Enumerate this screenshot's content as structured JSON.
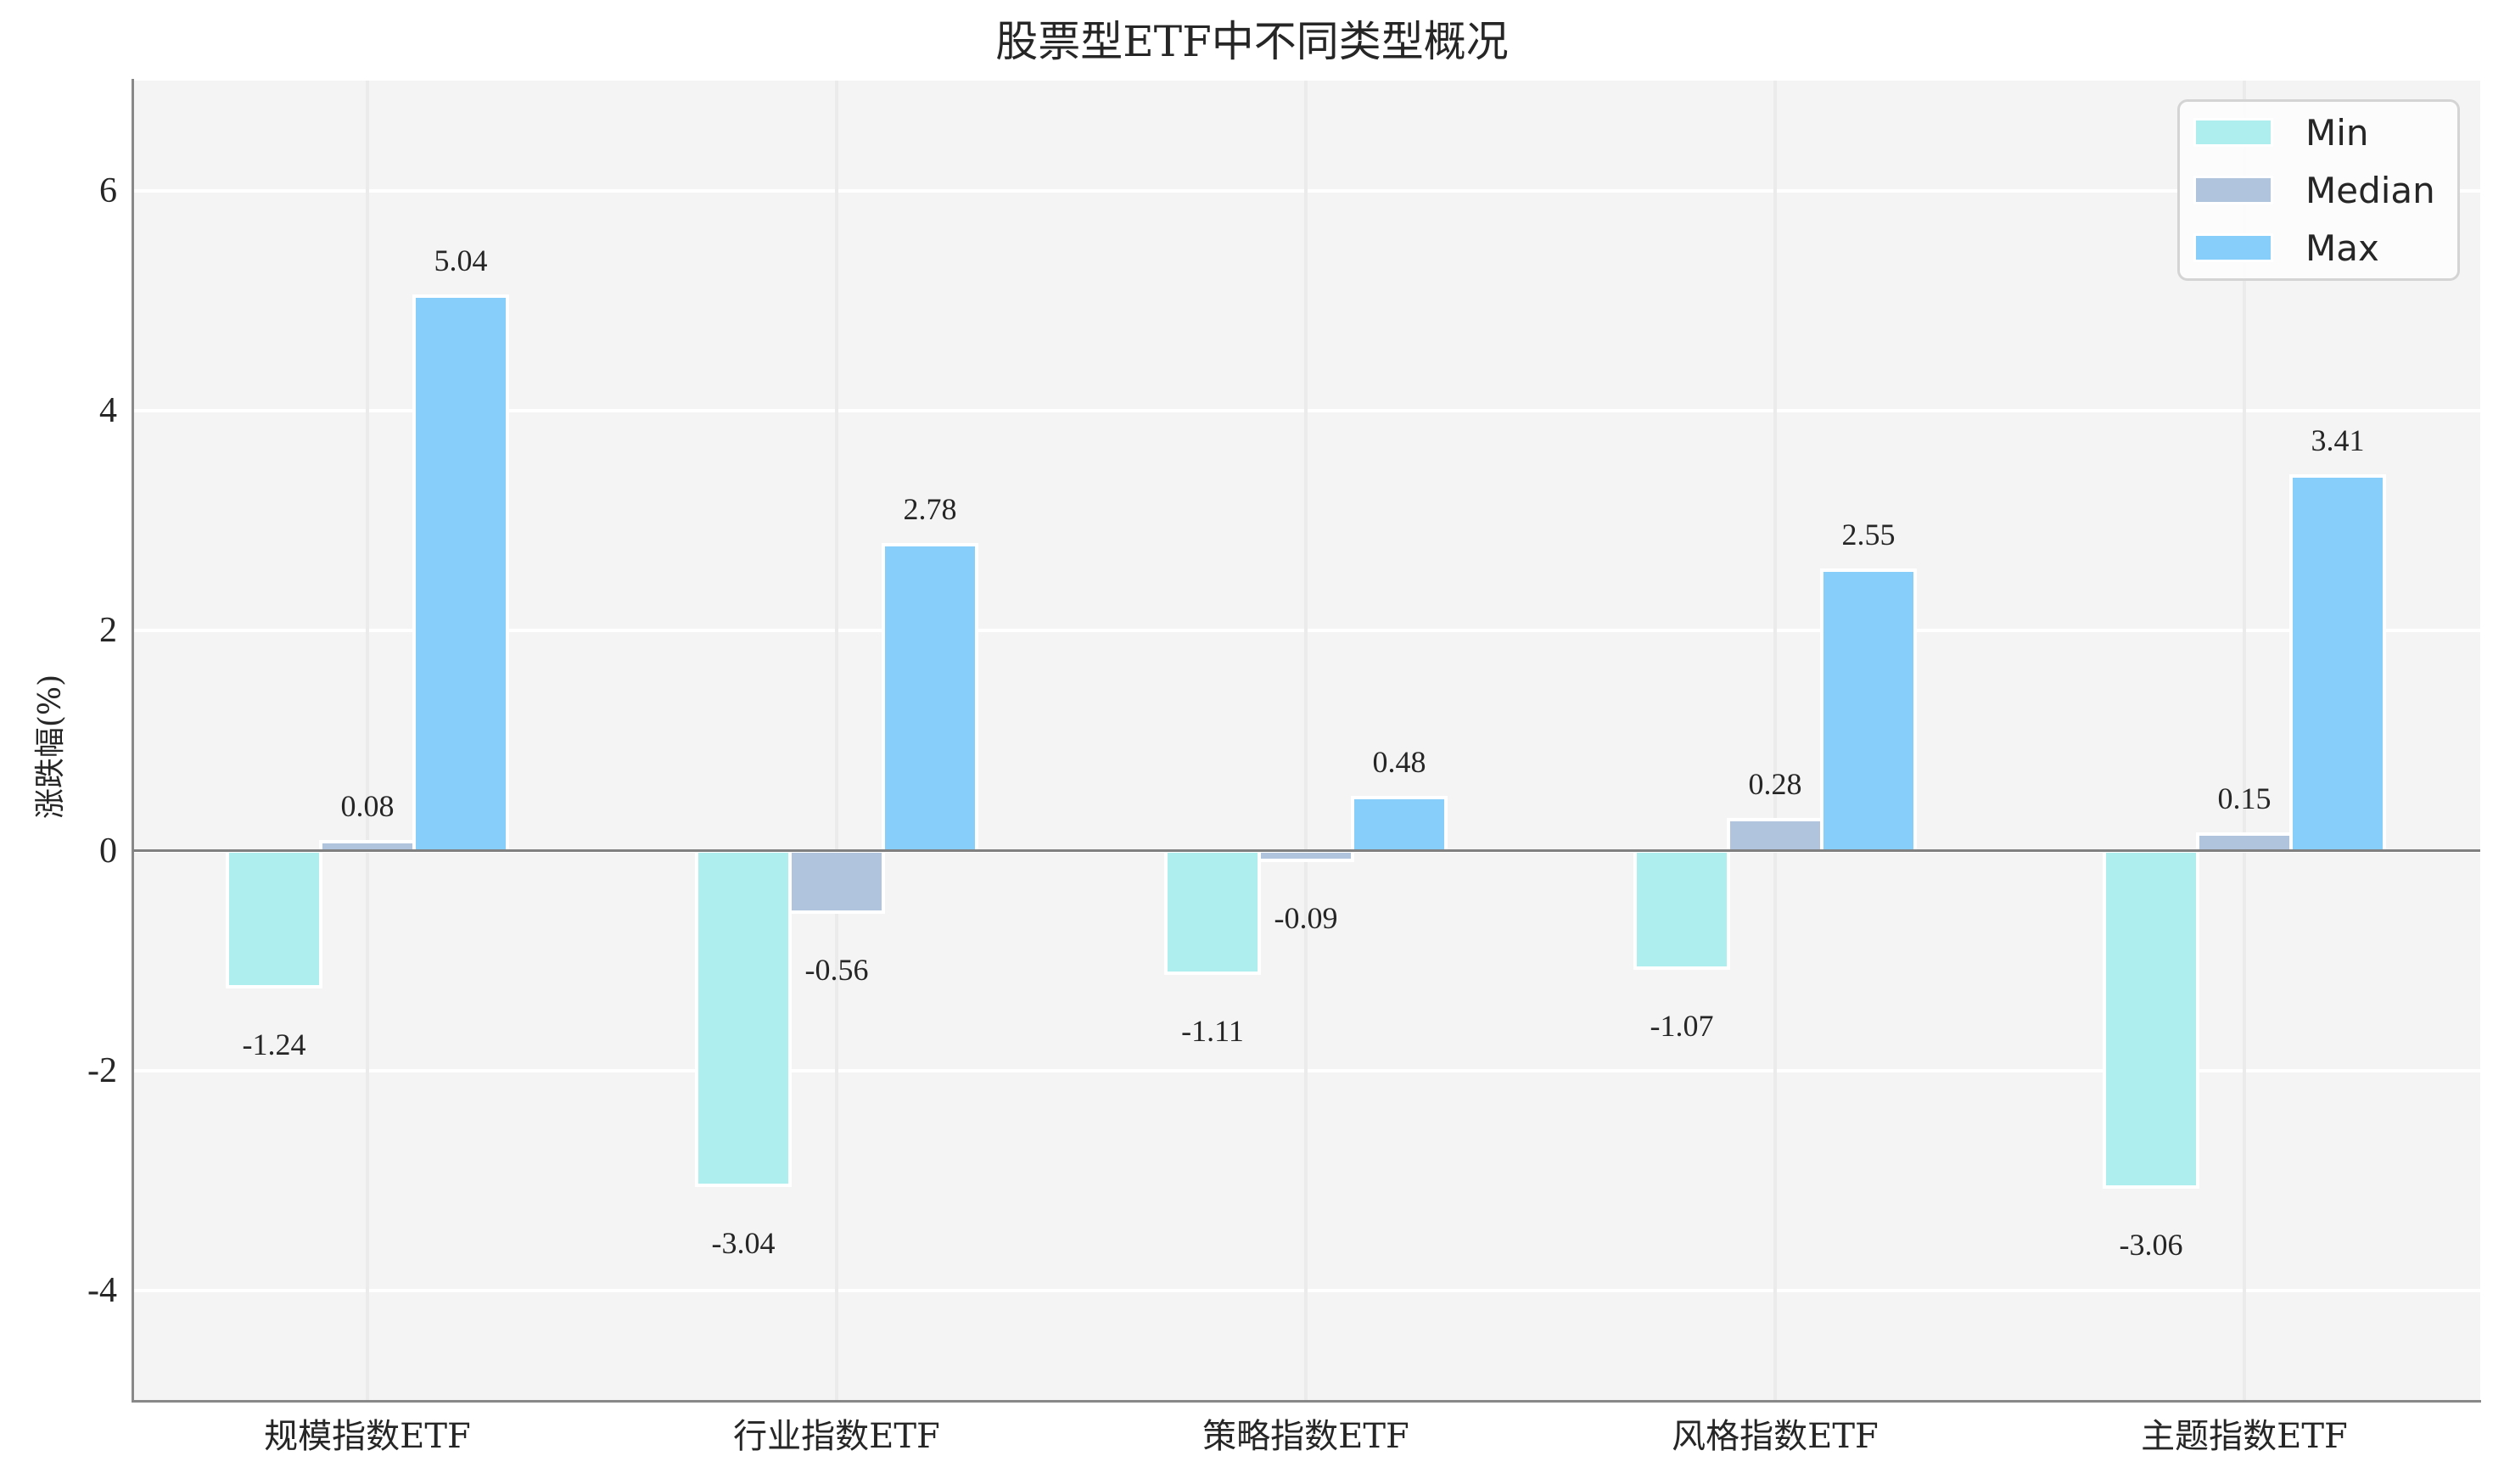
{
  "chart": {
    "title": "股票型ETF中不同类型概况",
    "ylabel": "涨跌幅(%)",
    "yticks": [
      "6",
      "4",
      "2",
      "0",
      "-2",
      "-4"
    ],
    "categories": [
      "规模指数ETF",
      "行业指数ETF",
      "策略指数ETF",
      "风格指数ETF",
      "主题指数ETF"
    ],
    "legend": [
      {
        "label": "Min",
        "color": "#afeeee"
      },
      {
        "label": "Median",
        "color": "#b0c4de"
      },
      {
        "label": "Max",
        "color": "#87cefa"
      }
    ],
    "labels": {
      "min": [
        "-1.24",
        "-3.04",
        "-1.11",
        "-1.07",
        "-3.06"
      ],
      "median": [
        "0.08",
        "-0.56",
        "-0.09",
        "0.28",
        "0.15"
      ],
      "max": [
        "5.04",
        "2.78",
        "0.48",
        "2.55",
        "3.41"
      ]
    }
  },
  "chart_data": {
    "type": "bar",
    "title": "股票型ETF中不同类型概况",
    "xlabel": "",
    "ylabel": "涨跌幅(%)",
    "categories": [
      "规模指数ETF",
      "行业指数ETF",
      "策略指数ETF",
      "风格指数ETF",
      "主题指数ETF"
    ],
    "series": [
      {
        "name": "Min",
        "color": "#afeeee",
        "values": [
          -1.24,
          -3.04,
          -1.11,
          -1.07,
          -3.06
        ]
      },
      {
        "name": "Median",
        "color": "#b0c4de",
        "values": [
          0.08,
          -0.56,
          -0.09,
          0.28,
          0.15
        ]
      },
      {
        "name": "Max",
        "color": "#87cefa",
        "values": [
          5.04,
          2.78,
          0.48,
          2.55,
          3.41
        ]
      }
    ],
    "ylim": [
      -5,
      7
    ],
    "yticks": [
      -4,
      -2,
      0,
      2,
      4,
      6
    ],
    "grid": true,
    "legend_position": "upper right",
    "data_labels": true
  }
}
